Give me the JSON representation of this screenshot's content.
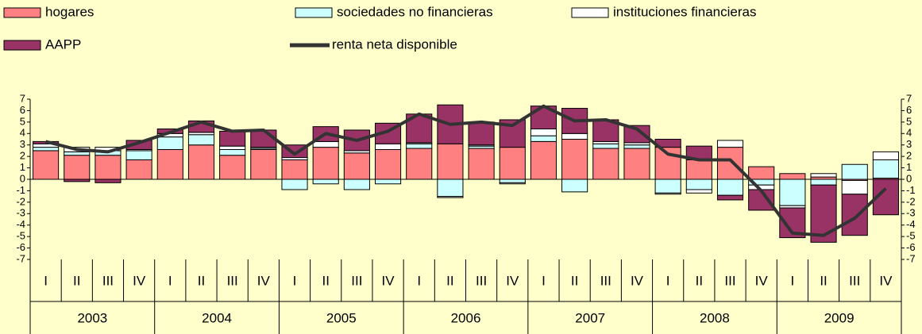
{
  "chart_data": {
    "type": "bar",
    "categories": [
      "I",
      "II",
      "III",
      "IV",
      "I",
      "II",
      "III",
      "IV",
      "I",
      "II",
      "III",
      "IV",
      "I",
      "II",
      "III",
      "IV",
      "I",
      "II",
      "III",
      "IV",
      "I",
      "II",
      "III",
      "IV",
      "I",
      "II",
      "III",
      "IV"
    ],
    "years": [
      "2003",
      "2004",
      "2005",
      "2006",
      "2007",
      "2008",
      "2009"
    ],
    "ylim": [
      -7,
      7
    ],
    "yticks": [
      -7,
      -6,
      -5,
      -4,
      -3,
      -2,
      -1,
      0,
      1,
      2,
      3,
      4,
      5,
      6,
      7
    ],
    "series": [
      {
        "name": "hogares",
        "color": "#ff8080",
        "type": "bar",
        "values": [
          2.5,
          2.1,
          2.1,
          1.7,
          2.6,
          3.0,
          2.1,
          2.6,
          1.7,
          2.8,
          2.3,
          2.6,
          2.7,
          3.1,
          2.7,
          2.8,
          3.3,
          3.5,
          2.7,
          2.7,
          2.8,
          1.7,
          2.8,
          1.1,
          0.5,
          0.2,
          -0.1,
          0.1
        ]
      },
      {
        "name": "sociedades no financieras",
        "color": "#ccffff",
        "type": "bar",
        "values": [
          0.3,
          0.3,
          0.4,
          0.8,
          1.1,
          0.9,
          0.5,
          0.1,
          -0.9,
          -0.4,
          -0.9,
          -0.4,
          0.4,
          -1.5,
          0.2,
          -0.3,
          0.5,
          -1.1,
          0.4,
          0.3,
          -1.2,
          -0.9,
          -1.4,
          -0.5,
          -2.3,
          -0.5,
          1.3,
          1.6
        ]
      },
      {
        "name": "instituciones financieras",
        "color": "#ffffff",
        "type": "bar",
        "values": [
          0.3,
          0.4,
          0.3,
          0.1,
          0.3,
          0.2,
          0.3,
          0.1,
          0.2,
          0.5,
          0.2,
          0.5,
          0.1,
          -0.1,
          0.1,
          -0.1,
          0.6,
          0.5,
          0.2,
          0.2,
          -0.1,
          -0.3,
          0.6,
          -0.4,
          -0.2,
          0.3,
          -1.2,
          0.7
        ]
      },
      {
        "name": "AAPP",
        "color": "#993366",
        "type": "bar",
        "values": [
          0.2,
          -0.2,
          -0.3,
          0.8,
          0.4,
          1.0,
          1.3,
          1.5,
          1.1,
          1.3,
          1.8,
          1.8,
          2.5,
          3.4,
          2.0,
          2.4,
          2.0,
          2.2,
          1.9,
          1.5,
          0.7,
          1.2,
          -0.4,
          -1.8,
          -2.6,
          -5.0,
          -3.6,
          -3.1
        ]
      },
      {
        "name": "renta neta disponible",
        "color": "#333333",
        "type": "line",
        "values": [
          3.3,
          2.6,
          2.4,
          3.2,
          4.1,
          5.0,
          4.2,
          4.3,
          2.2,
          4.0,
          3.4,
          4.2,
          5.7,
          4.8,
          5.0,
          4.7,
          6.4,
          5.1,
          5.2,
          4.4,
          2.2,
          1.7,
          1.7,
          -1.0,
          -4.7,
          -4.9,
          -3.4,
          -0.8
        ]
      }
    ]
  }
}
